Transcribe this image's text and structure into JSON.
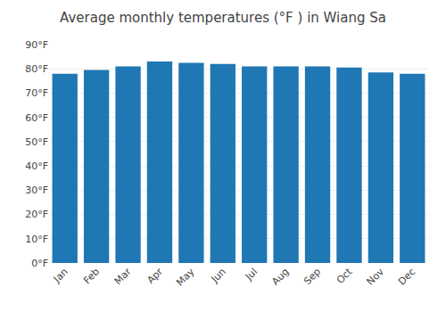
{
  "chart_data": {
    "type": "bar",
    "title": "Average monthly temperatures (°F ) in Wiang Sa",
    "categories": [
      "Jan",
      "Feb",
      "Mar",
      "Apr",
      "May",
      "Jun",
      "Jul",
      "Aug",
      "Sep",
      "Oct",
      "Nov",
      "Dec"
    ],
    "values": [
      78,
      79.5,
      81,
      83,
      82.5,
      82,
      81,
      81,
      81,
      80.5,
      78.5,
      78
    ],
    "ylim": [
      0,
      90
    ],
    "yticks": [
      {
        "value": 0,
        "label": "0°F"
      },
      {
        "value": 10,
        "label": "10°F"
      },
      {
        "value": 20,
        "label": "20°F"
      },
      {
        "value": 30,
        "label": "30°F"
      },
      {
        "value": 40,
        "label": "40°F"
      },
      {
        "value": 50,
        "label": "50°F"
      },
      {
        "value": 60,
        "label": "60°F"
      },
      {
        "value": 70,
        "label": "70°F"
      },
      {
        "value": 80,
        "label": "80°F"
      },
      {
        "value": 90,
        "label": "90°F"
      }
    ],
    "grid": true
  }
}
